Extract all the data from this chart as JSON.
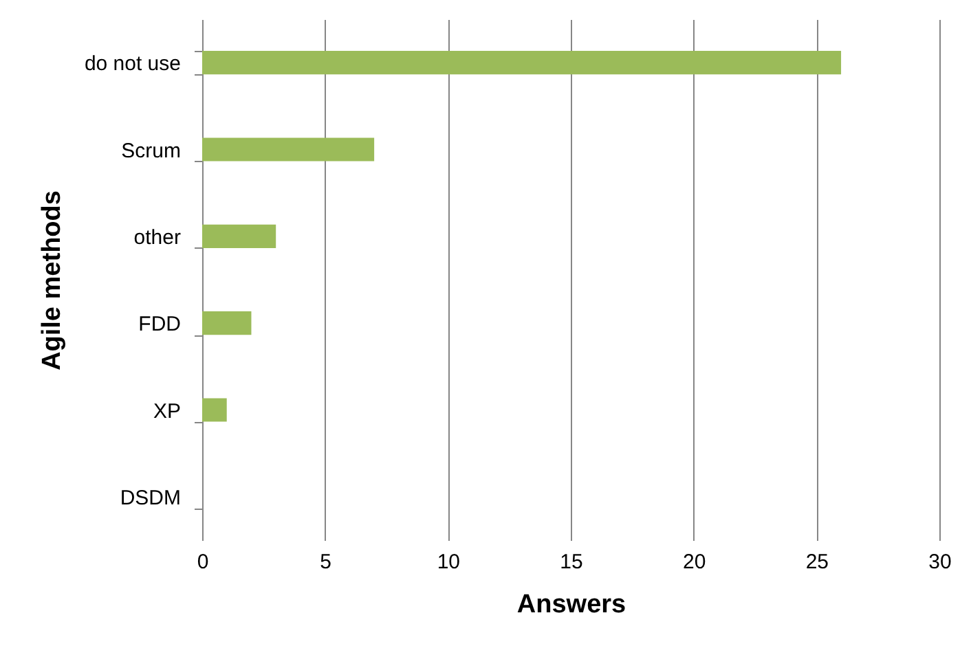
{
  "chart_data": {
    "type": "bar",
    "orientation": "horizontal",
    "xlabel": "Answers",
    "ylabel": "Agile methods",
    "categories": [
      "do not use",
      "Scrum",
      "other",
      "FDD",
      "XP",
      "DSDM"
    ],
    "values": [
      26,
      7,
      3,
      2,
      1,
      0
    ],
    "color": "#9bbb59",
    "xlim": [
      0,
      30
    ],
    "xticks": [
      0,
      5,
      10,
      15,
      20,
      25,
      30
    ],
    "grid": "x",
    "legend": false
  }
}
